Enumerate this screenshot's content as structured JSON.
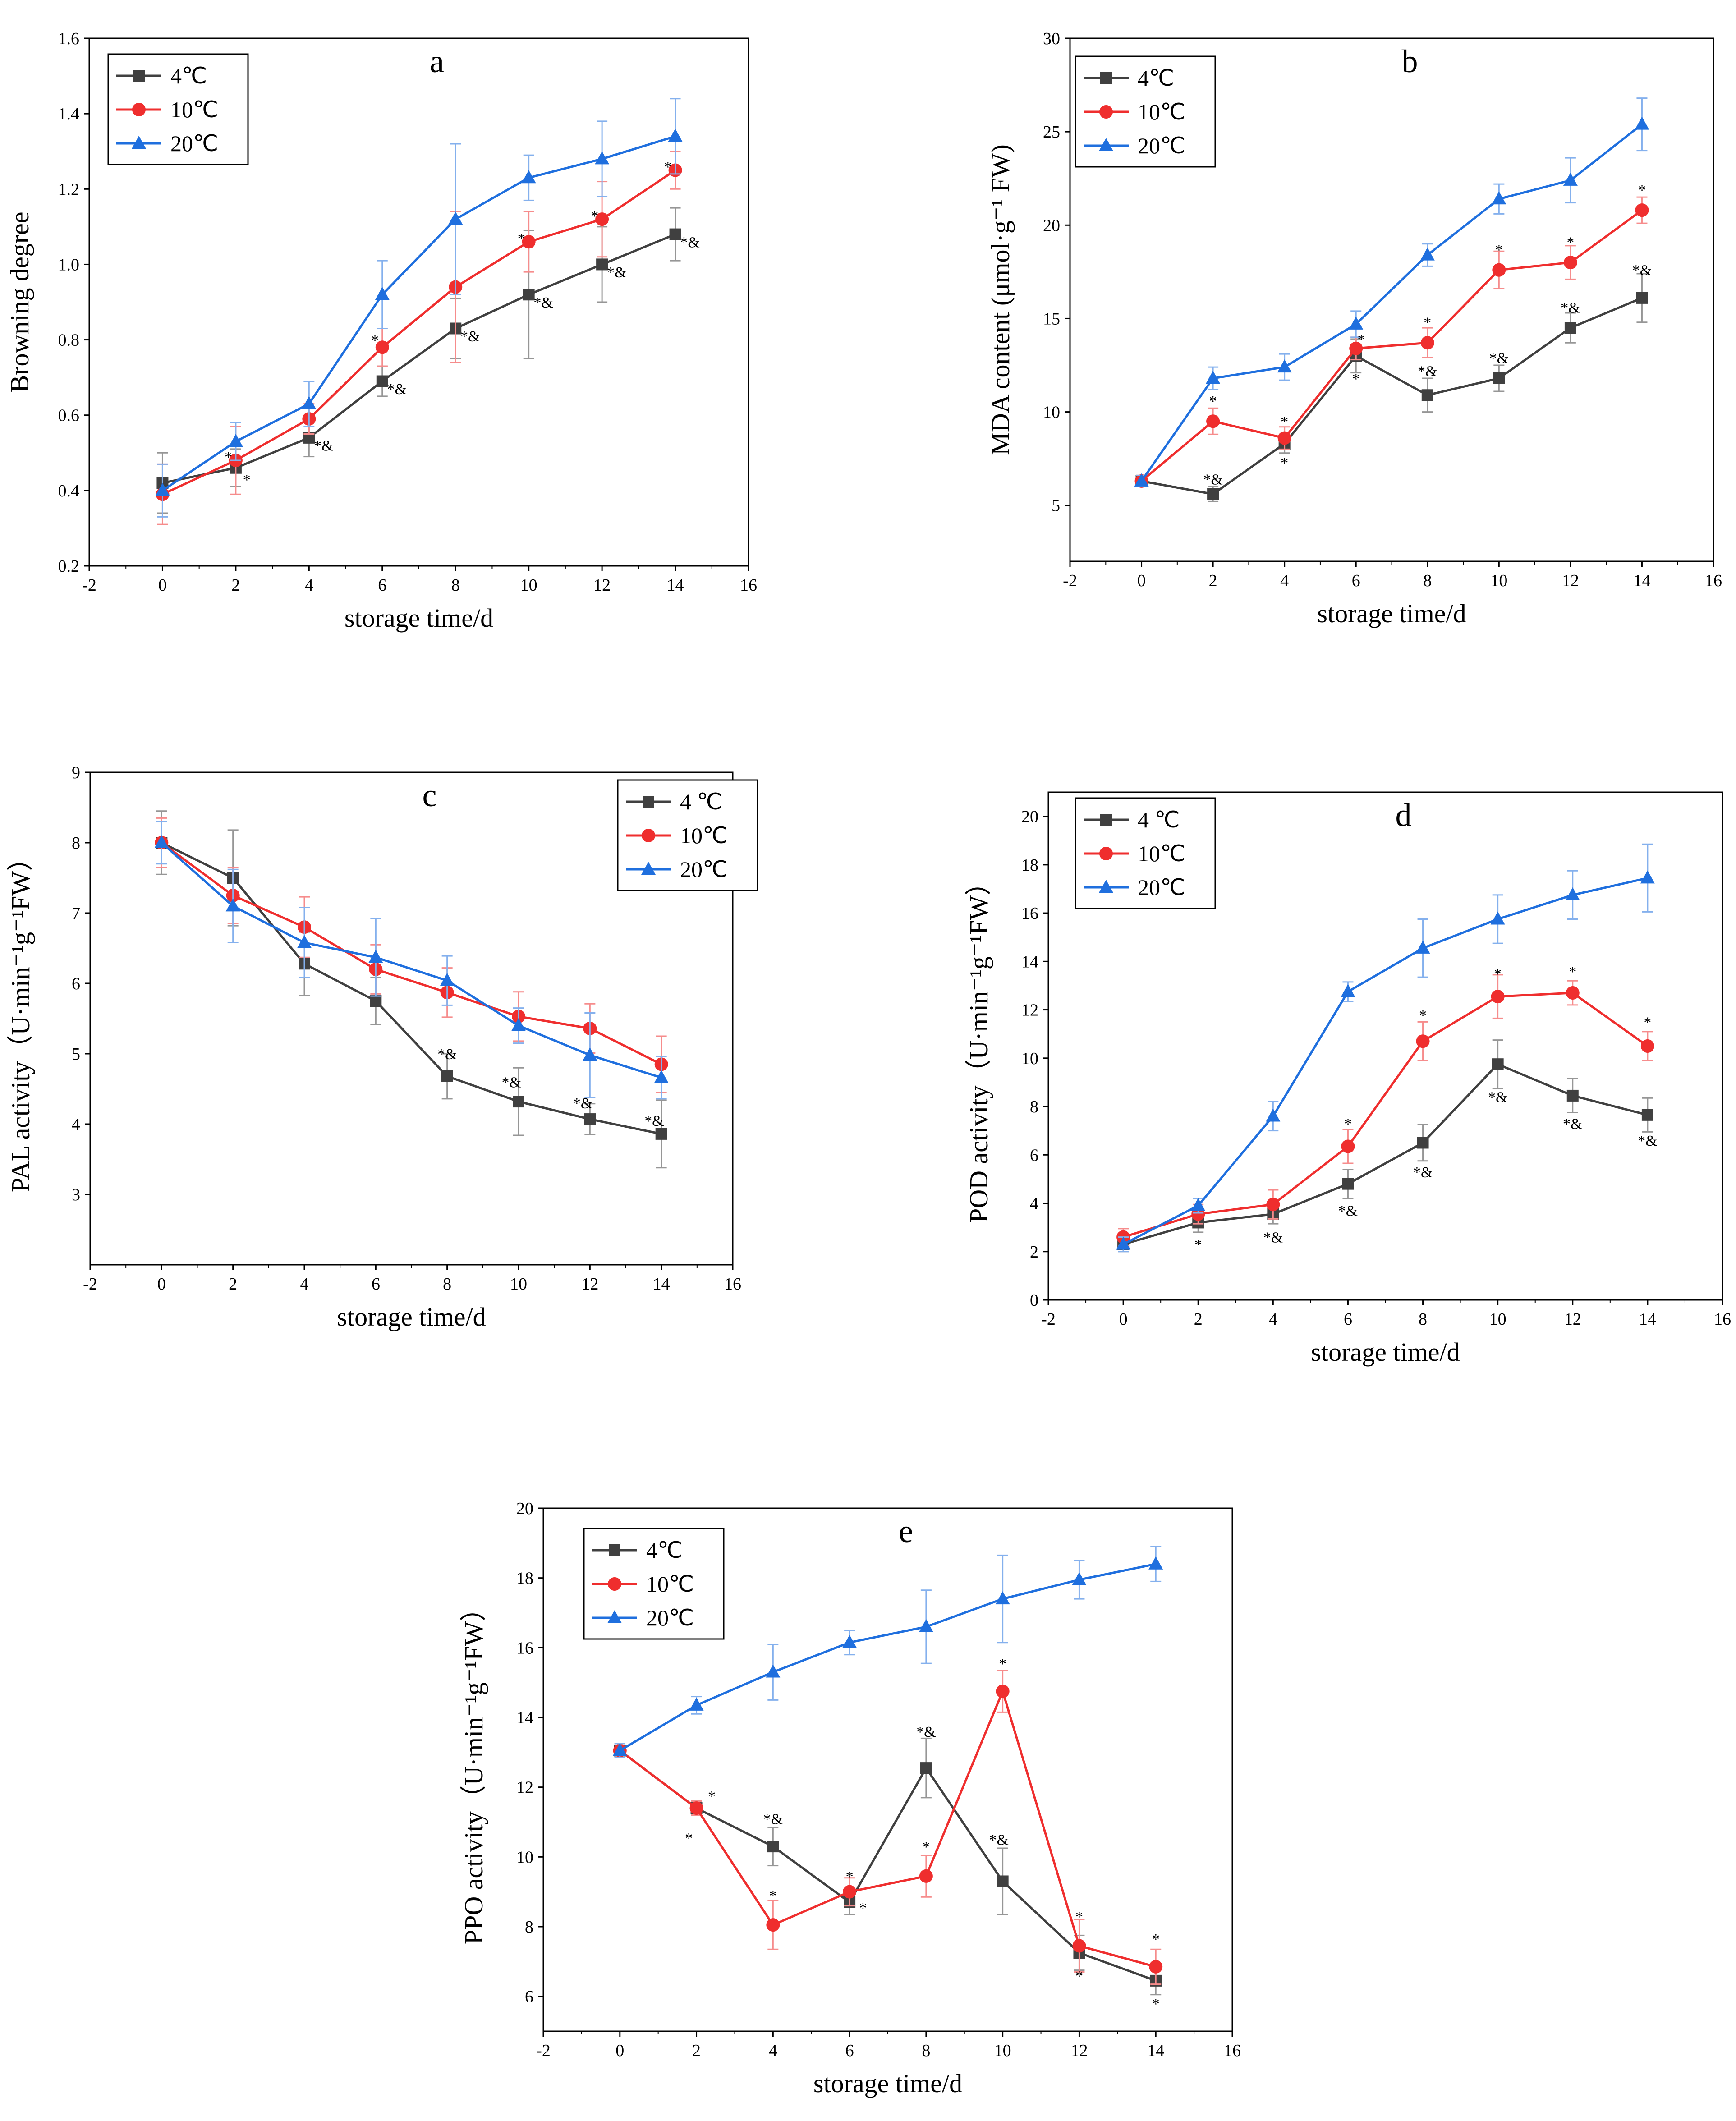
{
  "chart_data": [
    {
      "panel": "a",
      "type": "line",
      "xlabel": "storage time/d",
      "ylabel": "Browning  degree",
      "xlim": [
        -2,
        16
      ],
      "ylim": [
        0.2,
        1.6
      ],
      "x_ticks": [
        -2,
        0,
        2,
        4,
        6,
        8,
        10,
        12,
        14,
        16
      ],
      "y_ticks": [
        "0.2",
        "0.4",
        "0.6",
        "0.8",
        "1.0",
        "1.2",
        "1.4",
        "1.6"
      ],
      "legend_position": "top-left",
      "x": [
        0,
        2,
        4,
        6,
        8,
        10,
        12,
        14
      ],
      "series": [
        {
          "name": "4℃",
          "color": "#404040",
          "marker": "square",
          "values": [
            0.42,
            0.46,
            0.54,
            0.69,
            0.83,
            0.92,
            1.0,
            1.08
          ],
          "errors": [
            0.08,
            0.05,
            0.05,
            0.04,
            0.08,
            0.17,
            0.1,
            0.07
          ]
        },
        {
          "name": "10℃",
          "color": "#ef2e2e",
          "marker": "circle",
          "values": [
            0.39,
            0.48,
            0.59,
            0.78,
            0.94,
            1.06,
            1.12,
            1.25
          ],
          "errors": [
            0.08,
            0.09,
            0.04,
            0.05,
            0.2,
            0.08,
            0.1,
            0.05
          ]
        },
        {
          "name": "20℃",
          "color": "#1f6fde",
          "marker": "triangle",
          "values": [
            0.4,
            0.53,
            0.63,
            0.92,
            1.12,
            1.23,
            1.28,
            1.34
          ],
          "errors": [
            0.07,
            0.05,
            0.06,
            0.09,
            0.2,
            0.06,
            0.1,
            0.1
          ]
        }
      ],
      "annotations": [
        {
          "text": "*",
          "x": 1.8,
          "y": 0.49
        },
        {
          "text": "*",
          "x": 2.3,
          "y": 0.43
        },
        {
          "text": "*&",
          "x": 4.4,
          "y": 0.52
        },
        {
          "text": "*",
          "x": 5.8,
          "y": 0.8
        },
        {
          "text": "*&",
          "x": 6.4,
          "y": 0.67
        },
        {
          "text": "*&",
          "x": 8.4,
          "y": 0.81
        },
        {
          "text": "*",
          "x": 9.8,
          "y": 1.07
        },
        {
          "text": "*&",
          "x": 10.4,
          "y": 0.9
        },
        {
          "text": "*",
          "x": 11.8,
          "y": 1.13
        },
        {
          "text": "*&",
          "x": 12.4,
          "y": 0.98
        },
        {
          "text": "*",
          "x": 13.8,
          "y": 1.26
        },
        {
          "text": "*&",
          "x": 14.4,
          "y": 1.06
        }
      ]
    },
    {
      "panel": "b",
      "type": "line",
      "xlabel": "storage time/d",
      "ylabel": "MDA content (μmol·g⁻¹ FW)",
      "xlim": [
        -2,
        16
      ],
      "ylim": [
        2,
        30
      ],
      "x_ticks": [
        -2,
        0,
        2,
        4,
        6,
        8,
        10,
        12,
        14,
        16
      ],
      "y_ticks": [
        "5",
        "10",
        "15",
        "20",
        "25",
        "30"
      ],
      "legend_position": "top-left",
      "x": [
        0,
        2,
        4,
        6,
        8,
        10,
        12,
        14
      ],
      "series": [
        {
          "name": "4℃",
          "color": "#404040",
          "marker": "square",
          "values": [
            6.3,
            5.6,
            8.3,
            13.0,
            10.9,
            11.8,
            14.5,
            16.1
          ],
          "errors": [
            0.3,
            0.4,
            0.5,
            0.9,
            0.9,
            0.7,
            0.8,
            1.3
          ]
        },
        {
          "name": "10℃",
          "color": "#ef2e2e",
          "marker": "circle",
          "values": [
            6.3,
            9.5,
            8.6,
            13.4,
            13.7,
            17.6,
            18.0,
            20.8
          ],
          "errors": [
            0.3,
            0.7,
            0.6,
            0.6,
            0.8,
            1.0,
            0.9,
            0.7
          ]
        },
        {
          "name": "20℃",
          "color": "#1f6fde",
          "marker": "triangle",
          "values": [
            6.3,
            11.8,
            12.4,
            14.7,
            18.4,
            21.4,
            22.4,
            25.4
          ],
          "errors": [
            0.3,
            0.6,
            0.7,
            0.7,
            0.6,
            0.8,
            1.2,
            1.4
          ]
        }
      ],
      "annotations": [
        {
          "text": "*",
          "x": 2,
          "y": 10.6
        },
        {
          "text": "*&",
          "x": 2,
          "y": 6.4
        },
        {
          "text": "*",
          "x": 4,
          "y": 9.5
        },
        {
          "text": "*",
          "x": 4,
          "y": 7.3
        },
        {
          "text": "*",
          "x": 6.15,
          "y": 13.9
        },
        {
          "text": "*",
          "x": 6,
          "y": 11.8
        },
        {
          "text": "*",
          "x": 8,
          "y": 14.8
        },
        {
          "text": "*&",
          "x": 8,
          "y": 12.2
        },
        {
          "text": "*",
          "x": 10,
          "y": 18.7
        },
        {
          "text": "*&",
          "x": 10,
          "y": 12.9
        },
        {
          "text": "*",
          "x": 12,
          "y": 19.1
        },
        {
          "text": "*&",
          "x": 12,
          "y": 15.6
        },
        {
          "text": "*",
          "x": 14,
          "y": 21.9
        },
        {
          "text": "*&",
          "x": 14,
          "y": 17.6
        }
      ]
    },
    {
      "panel": "c",
      "type": "line",
      "xlabel": "storage time/d",
      "ylabel": "PAL activity（U·min⁻¹g⁻¹FW）",
      "xlim": [
        -2,
        16
      ],
      "ylim": [
        2,
        9
      ],
      "x_ticks": [
        -2,
        0,
        2,
        4,
        6,
        8,
        10,
        12,
        14,
        16
      ],
      "y_ticks": [
        "3",
        "4",
        "5",
        "6",
        "7",
        "8",
        "9"
      ],
      "legend_position": "top-right",
      "x": [
        0,
        2,
        4,
        6,
        8,
        10,
        12,
        14
      ],
      "series": [
        {
          "name": "4 ℃",
          "color": "#404040",
          "marker": "square",
          "values": [
            8.0,
            7.5,
            6.28,
            5.75,
            4.68,
            4.32,
            4.07,
            3.86
          ],
          "errors": [
            0.45,
            0.68,
            0.45,
            0.33,
            0.32,
            0.48,
            0.22,
            0.48
          ]
        },
        {
          "name": "10℃",
          "color": "#ef2e2e",
          "marker": "circle",
          "values": [
            8.0,
            7.25,
            6.8,
            6.2,
            5.87,
            5.53,
            5.36,
            4.85
          ],
          "errors": [
            0.35,
            0.4,
            0.43,
            0.35,
            0.35,
            0.35,
            0.35,
            0.4
          ]
        },
        {
          "name": "20℃",
          "color": "#1f6fde",
          "marker": "triangle",
          "values": [
            8.0,
            7.1,
            6.58,
            6.37,
            6.04,
            5.4,
            4.98,
            4.66
          ],
          "errors": [
            0.3,
            0.52,
            0.5,
            0.55,
            0.35,
            0.25,
            0.6,
            0.3
          ]
        }
      ],
      "annotations": [
        {
          "text": "*&",
          "x": 8,
          "y": 5.0
        },
        {
          "text": "*&",
          "x": 9.8,
          "y": 4.6
        },
        {
          "text": "*&",
          "x": 11.8,
          "y": 4.3
        },
        {
          "text": "*&",
          "x": 13.8,
          "y": 4.05
        }
      ]
    },
    {
      "panel": "d",
      "type": "line",
      "xlabel": "storage time/d",
      "ylabel": "POD activity（U·min⁻¹g⁻¹FW）",
      "xlim": [
        -2,
        16
      ],
      "ylim": [
        0,
        21
      ],
      "x_ticks": [
        -2,
        0,
        2,
        4,
        6,
        8,
        10,
        12,
        14,
        16
      ],
      "y_ticks": [
        "0",
        "2",
        "4",
        "6",
        "8",
        "10",
        "12",
        "14",
        "16",
        "18",
        "20"
      ],
      "legend_position": "top-left",
      "x": [
        0,
        2,
        4,
        6,
        8,
        10,
        12,
        14
      ],
      "series": [
        {
          "name": "4 ℃",
          "color": "#404040",
          "marker": "square",
          "values": [
            2.3,
            3.2,
            3.55,
            4.8,
            6.5,
            9.75,
            8.45,
            7.65
          ],
          "errors": [
            0.3,
            0.4,
            0.4,
            0.6,
            0.75,
            1.0,
            0.7,
            0.7
          ]
        },
        {
          "name": "10℃",
          "color": "#ef2e2e",
          "marker": "circle",
          "values": [
            2.6,
            3.55,
            3.95,
            6.35,
            10.7,
            12.55,
            12.7,
            10.5
          ],
          "errors": [
            0.35,
            0.4,
            0.6,
            0.7,
            0.8,
            0.9,
            0.5,
            0.6
          ]
        },
        {
          "name": "20℃",
          "color": "#1f6fde",
          "marker": "triangle",
          "values": [
            2.3,
            3.9,
            7.6,
            12.75,
            14.55,
            15.75,
            16.75,
            17.45
          ],
          "errors": [
            0.3,
            0.3,
            0.6,
            0.4,
            1.2,
            1.0,
            1.0,
            1.4
          ]
        }
      ],
      "annotations": [
        {
          "text": "*",
          "x": 2,
          "y": 2.3
        },
        {
          "text": "*&",
          "x": 4,
          "y": 2.6
        },
        {
          "text": "*",
          "x": 6,
          "y": 7.3
        },
        {
          "text": "*&",
          "x": 6,
          "y": 3.7
        },
        {
          "text": "*",
          "x": 8,
          "y": 11.8
        },
        {
          "text": "*&",
          "x": 8,
          "y": 5.3
        },
        {
          "text": "*",
          "x": 10,
          "y": 13.5
        },
        {
          "text": "*&",
          "x": 10,
          "y": 8.4
        },
        {
          "text": "*",
          "x": 12,
          "y": 13.6
        },
        {
          "text": "*&",
          "x": 12,
          "y": 7.3
        },
        {
          "text": "*",
          "x": 14,
          "y": 11.5
        },
        {
          "text": "*&",
          "x": 14,
          "y": 6.6
        }
      ]
    },
    {
      "panel": "e",
      "type": "line",
      "xlabel": "storage time/d",
      "ylabel": "PPO activity（U·min⁻¹g⁻¹FW）",
      "xlim": [
        -2,
        16
      ],
      "ylim": [
        5,
        20
      ],
      "x_ticks": [
        -2,
        0,
        2,
        4,
        6,
        8,
        10,
        12,
        14,
        16
      ],
      "y_ticks": [
        "6",
        "8",
        "10",
        "12",
        "14",
        "16",
        "18",
        "20"
      ],
      "legend_position": "top-left",
      "x": [
        0,
        2,
        4,
        6,
        8,
        10,
        12,
        14
      ],
      "series": [
        {
          "name": "4℃",
          "color": "#404040",
          "marker": "square",
          "values": [
            13.05,
            11.4,
            10.3,
            8.7,
            12.55,
            9.3,
            7.25,
            6.45
          ],
          "errors": [
            0.2,
            0.2,
            0.55,
            0.35,
            0.85,
            0.95,
            0.5,
            0.4
          ]
        },
        {
          "name": "10℃",
          "color": "#ef2e2e",
          "marker": "circle",
          "values": [
            13.05,
            11.4,
            8.05,
            9.0,
            9.45,
            14.75,
            7.45,
            6.85
          ],
          "errors": [
            0.2,
            0.2,
            0.7,
            0.4,
            0.6,
            0.6,
            0.75,
            0.5
          ]
        },
        {
          "name": "20℃",
          "color": "#1f6fde",
          "marker": "triangle",
          "values": [
            13.05,
            14.35,
            15.3,
            16.15,
            16.6,
            17.4,
            17.95,
            18.4
          ],
          "errors": [
            0.2,
            0.25,
            0.8,
            0.35,
            1.05,
            1.25,
            0.55,
            0.5
          ]
        }
      ],
      "annotations": [
        {
          "text": "*",
          "x": 2.4,
          "y": 11.75
        },
        {
          "text": "*",
          "x": 1.8,
          "y": 10.55
        },
        {
          "text": "*&",
          "x": 4,
          "y": 11.1
        },
        {
          "text": "*",
          "x": 4,
          "y": 8.9
        },
        {
          "text": "*",
          "x": 6,
          "y": 9.45
        },
        {
          "text": "*",
          "x": 6.35,
          "y": 8.55
        },
        {
          "text": "*&",
          "x": 8,
          "y": 13.6
        },
        {
          "text": "*",
          "x": 8,
          "y": 10.3
        },
        {
          "text": "*",
          "x": 10,
          "y": 15.55
        },
        {
          "text": "*&",
          "x": 9.9,
          "y": 10.5
        },
        {
          "text": "*",
          "x": 12,
          "y": 8.3
        },
        {
          "text": "*",
          "x": 12,
          "y": 6.6
        },
        {
          "text": "*",
          "x": 14,
          "y": 7.65
        },
        {
          "text": "*",
          "x": 14,
          "y": 5.8
        }
      ]
    }
  ]
}
